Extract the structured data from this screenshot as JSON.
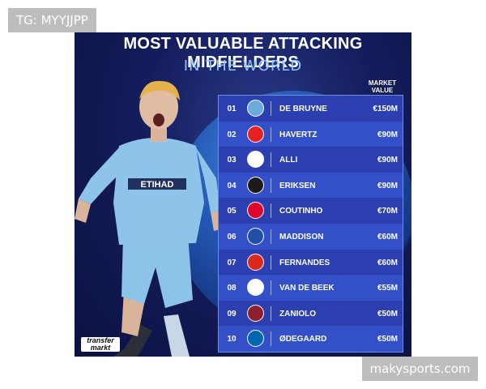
{
  "overlays": {
    "top_tag": "TG: MYYJJPP",
    "bottom_tag": "makysports.com"
  },
  "poster": {
    "title": "MOST VALUABLE ATTACKING MIDFIELDERS",
    "subtitle": "IN THE WORLD",
    "column_header": "MARKET VALUE",
    "jersey_text": "ETIHAD",
    "logo_text": "transfermarkt",
    "rows": [
      {
        "rank": "01",
        "player": "DE BRUYNE",
        "value": "€150M",
        "badge_color": "#6cabdd"
      },
      {
        "rank": "02",
        "player": "HAVERTZ",
        "value": "€90M",
        "badge_color": "#e32221"
      },
      {
        "rank": "03",
        "player": "ALLI",
        "value": "€90M",
        "badge_color": "#ffffff"
      },
      {
        "rank": "04",
        "player": "ERIKSEN",
        "value": "€90M",
        "badge_color": "#1b1b1b"
      },
      {
        "rank": "05",
        "player": "COUTINHO",
        "value": "€70M",
        "badge_color": "#dc052d"
      },
      {
        "rank": "06",
        "player": "MADDISON",
        "value": "€60M",
        "badge_color": "#1f4fa8"
      },
      {
        "rank": "07",
        "player": "FERNANDES",
        "value": "€60M",
        "badge_color": "#da291c"
      },
      {
        "rank": "08",
        "player": "VAN DE BEEK",
        "value": "€55M",
        "badge_color": "#ffffff"
      },
      {
        "rank": "09",
        "player": "ZANIOLO",
        "value": "€50M",
        "badge_color": "#8e1f2f"
      },
      {
        "rank": "10",
        "player": "ØDEGAARD",
        "value": "€50M",
        "badge_color": "#0067b1"
      }
    ]
  }
}
